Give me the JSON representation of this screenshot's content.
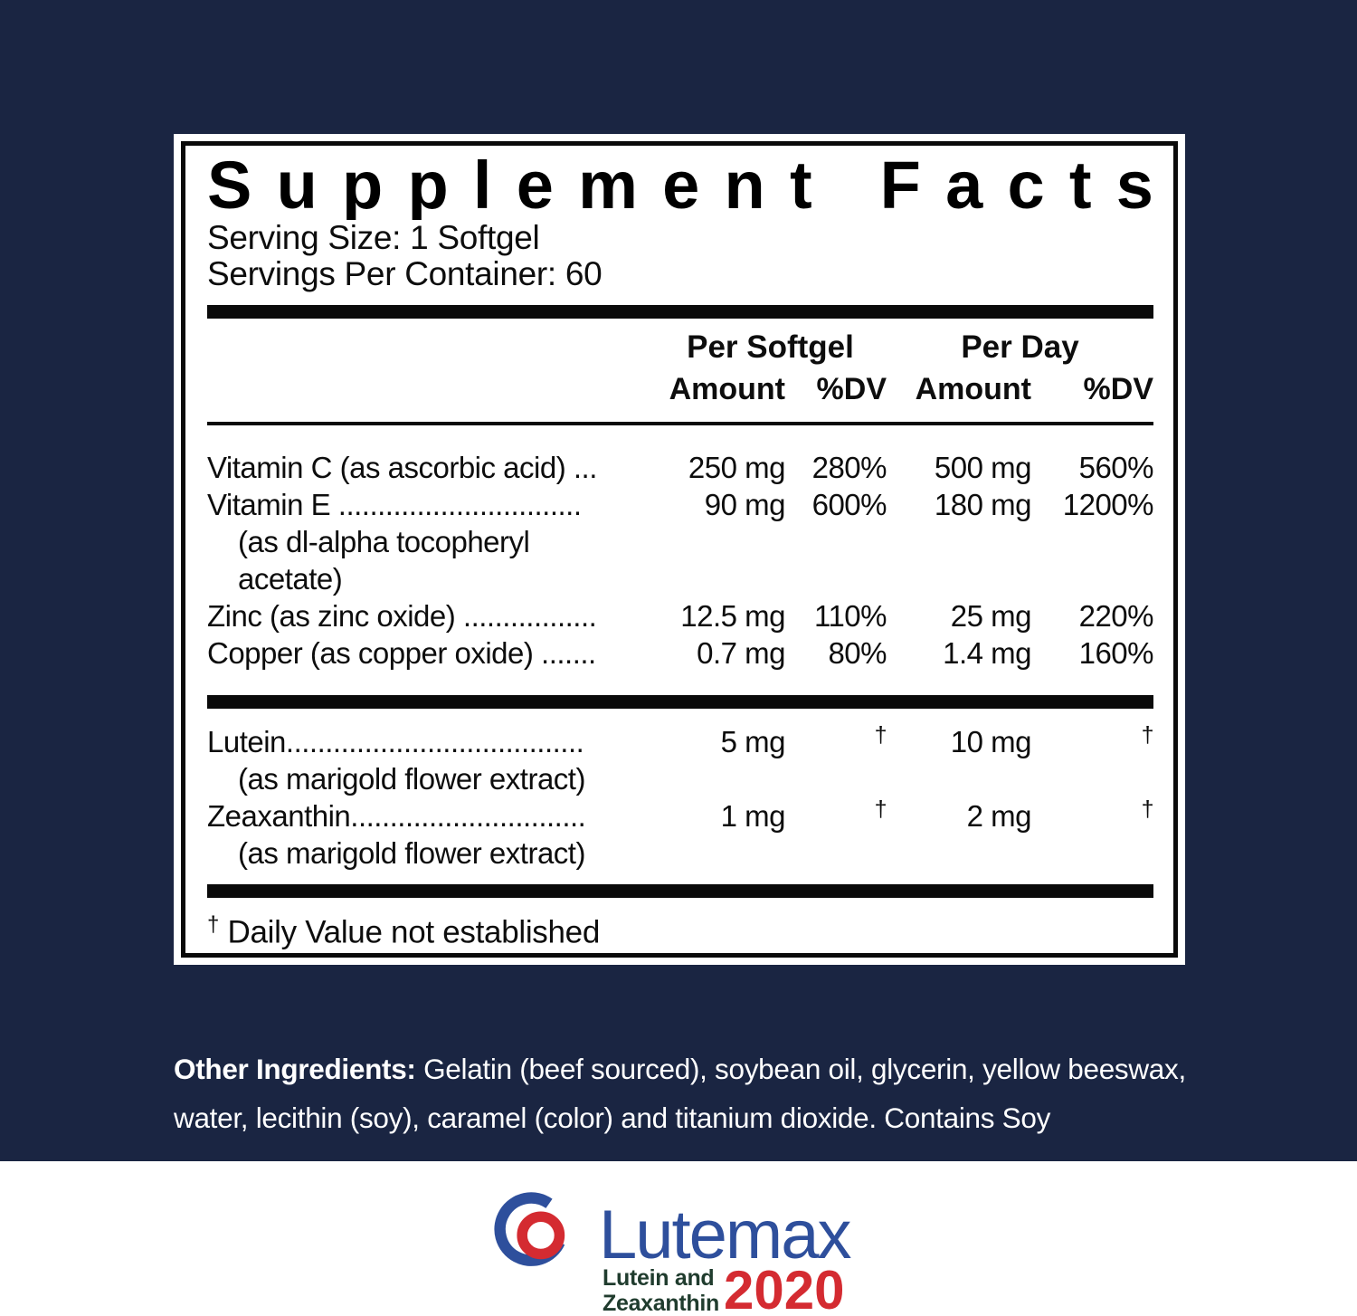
{
  "colors": {
    "background_navy": "#1a2542",
    "panel_white": "#ffffff",
    "ink_black": "#0a0a0a",
    "logo_blue": "#2e4f9c",
    "logo_red": "#d42b31",
    "logo_green": "#203c2e"
  },
  "panel": {
    "title": "Supplement Facts",
    "serving_size": "Serving Size: 1 Softgel",
    "servings_per_container": "Servings Per Container: 60",
    "table": {
      "group_headers": {
        "per_softgel": "Per Softgel",
        "per_day": "Per Day"
      },
      "column_headers": {
        "amount_softgel": "Amount",
        "dv_softgel": "%DV",
        "amount_day": "Amount",
        "dv_day": "%DV"
      },
      "sections": [
        {
          "rows": [
            {
              "name": "Vitamin C (as ascorbic acid) ...",
              "amount_per_softgel": "250 mg",
              "dv_per_softgel": "280%",
              "amount_per_day": "500 mg",
              "dv_per_day": "560%",
              "sublines": []
            },
            {
              "name": "Vitamin E ...............................",
              "amount_per_softgel": "90 mg",
              "dv_per_softgel": "600%",
              "amount_per_day": "180 mg",
              "dv_per_day": "1200%",
              "sublines": [
                "(as dl-alpha tocopheryl",
                "acetate)"
              ]
            },
            {
              "name": "Zinc (as zinc oxide) .................",
              "amount_per_softgel": "12.5 mg",
              "dv_per_softgel": "110%",
              "amount_per_day": "25 mg",
              "dv_per_day": "220%",
              "sublines": []
            },
            {
              "name": "Copper (as copper oxide) .......",
              "amount_per_softgel": "0.7 mg",
              "dv_per_softgel": "80%",
              "amount_per_day": "1.4 mg",
              "dv_per_day": "160%",
              "sublines": []
            }
          ]
        },
        {
          "rows": [
            {
              "name": "Lutein......................................",
              "amount_per_softgel": "5 mg",
              "dv_per_softgel": "†",
              "amount_per_day": "10 mg",
              "dv_per_day": "†",
              "sublines": [
                "(as marigold flower extract)"
              ]
            },
            {
              "name": "Zeaxanthin..............................",
              "amount_per_softgel": "1 mg",
              "dv_per_softgel": "†",
              "amount_per_day": "2 mg",
              "dv_per_day": "†",
              "sublines": [
                "(as marigold flower extract)"
              ]
            }
          ]
        }
      ]
    },
    "footnote": {
      "symbol": "†",
      "text": "Daily Value not established"
    }
  },
  "other_ingredients": {
    "label": "Other Ingredients:",
    "line1": "Gelatin (beef sourced), soybean oil, glycerin, yellow beeswax,",
    "line2": "water, lecithin (soy), caramel (color) and titanium dioxide. Contains Soy"
  },
  "logo": {
    "wordmark": "Lutemax",
    "subtitle_line1": "Lutein and",
    "subtitle_line2": "Zeaxanthin",
    "year": "2020"
  }
}
